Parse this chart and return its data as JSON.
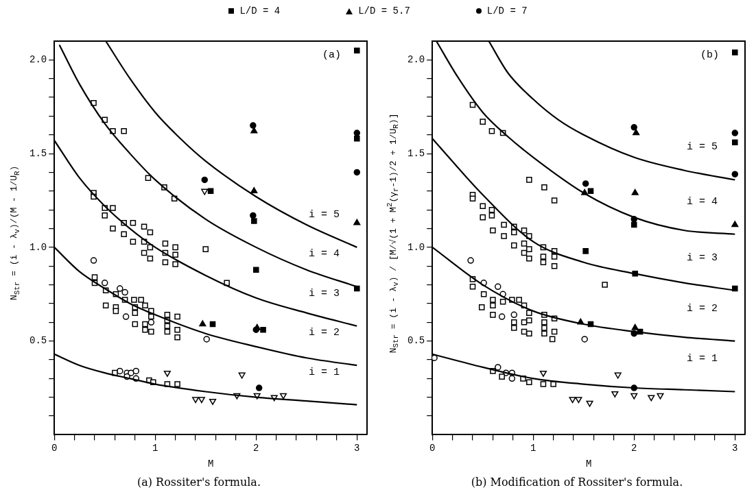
{
  "chart_data": [
    {
      "type": "scatter",
      "xlabel": "M",
      "ylabel": "N$_{Str}$ = (i - λ$_{v}$)/(M - 1/U$_{R}$)",
      "xlim": [
        0,
        3.1
      ],
      "ylim": [
        0,
        2.1
      ],
      "xticks": [
        0,
        {
          "value": 0.2,
          "label": null
        },
        {
          "value": 0.4,
          "label": null
        },
        {
          "value": 0.6,
          "label": null
        },
        {
          "value": 0.8,
          "label": null
        },
        1,
        {
          "value": 1.2,
          "label": null
        },
        {
          "value": 1.4,
          "label": null
        },
        {
          "value": 1.6,
          "label": null
        },
        {
          "value": 1.8,
          "label": null
        },
        2,
        {
          "value": 2.2,
          "label": null
        },
        {
          "value": 2.4,
          "label": null
        },
        {
          "value": 2.6,
          "label": null
        },
        {
          "value": 2.8,
          "label": null
        },
        3
      ],
      "yticks": [
        {
          "value": 0.1,
          "label": null
        },
        {
          "value": 0.2,
          "label": null
        },
        {
          "value": 0.3,
          "label": null
        },
        {
          "value": 0.4,
          "label": null
        },
        {
          "value": 0.5,
          "label": "0.5"
        },
        {
          "value": 0.6,
          "label": null
        },
        {
          "value": 0.7,
          "label": null
        },
        {
          "value": 0.8,
          "label": null
        },
        {
          "value": 0.9,
          "label": null
        },
        {
          "value": 1,
          "label": "1.0"
        },
        {
          "value": 1.1,
          "label": null
        },
        {
          "value": 1.2,
          "label": null
        },
        {
          "value": 1.3,
          "label": null
        },
        {
          "value": 1.4,
          "label": null
        },
        1.5,
        {
          "value": 1.6,
          "label": null
        },
        {
          "value": 1.7,
          "label": null
        },
        {
          "value": 1.8,
          "label": null
        },
        {
          "value": 1.9,
          "label": null
        },
        {
          "value": 2,
          "label": "2.0"
        }
      ],
      "grid": false,
      "legend": "top",
      "series": [
        {
          "type": "line",
          "color": "#000000",
          "marker": "none",
          "x": [
            0,
            0.25,
            0.5,
            0.75,
            1,
            1.5,
            2,
            2.5,
            3
          ],
          "values": [
            0.43,
            0.37,
            0.33,
            0.3,
            0.27,
            0.23,
            0.2,
            0.18,
            0.16
          ]
        },
        {
          "type": "line",
          "color": "#000000",
          "marker": "none",
          "x": [
            0,
            0.25,
            0.5,
            0.75,
            1,
            1.5,
            2,
            2.5,
            3
          ],
          "values": [
            1.0,
            0.87,
            0.78,
            0.7,
            0.64,
            0.54,
            0.47,
            0.41,
            0.37
          ]
        },
        {
          "type": "line",
          "color": "#000000",
          "marker": "none",
          "x": [
            0,
            0.25,
            0.5,
            0.75,
            1,
            1.5,
            2,
            2.5,
            3
          ],
          "values": [
            1.57,
            1.37,
            1.22,
            1.1,
            1.0,
            0.85,
            0.73,
            0.65,
            0.58
          ]
        },
        {
          "type": "line",
          "color": "#000000",
          "marker": "none",
          "x": [
            0.05,
            0.25,
            0.5,
            0.75,
            1,
            1.5,
            2,
            2.5,
            3
          ],
          "values": [
            2.08,
            1.87,
            1.66,
            1.5,
            1.36,
            1.15,
            1.0,
            0.88,
            0.79
          ]
        },
        {
          "type": "line",
          "color": "#000000",
          "marker": "none",
          "x": [
            0.51,
            0.75,
            1,
            1.25,
            1.5,
            2,
            2.5,
            3
          ],
          "values": [
            2.1,
            1.9,
            1.72,
            1.58,
            1.46,
            1.27,
            1.12,
            1.0
          ]
        },
        {
          "name": "L/D = 4",
          "type": "scatter",
          "color": "#000000",
          "marker": "square",
          "x": [
            1.55,
            1.98,
            1.57,
            2.0,
            2.07,
            3,
            3,
            3
          ],
          "values": [
            1.3,
            1.14,
            0.59,
            0.88,
            0.56,
            2.05,
            1.58,
            0.78
          ]
        },
        {
          "name": "L/D = 5.7",
          "type": "scatter",
          "color": "#000000",
          "marker": "triangle",
          "x": [
            1.98,
            1.98,
            1.47,
            2.01,
            3
          ],
          "values": [
            1.62,
            1.3,
            0.59,
            0.57,
            1.13
          ]
        },
        {
          "name": "L/D = 7",
          "type": "scatter",
          "color": "#000000",
          "marker": "circle",
          "x": [
            1.49,
            1.97,
            1.97,
            2.0,
            2.03,
            3,
            3
          ],
          "values": [
            1.36,
            1.65,
            1.17,
            0.56,
            0.25,
            1.61,
            1.4
          ]
        },
        {
          "type": "scatter",
          "color": "#000000",
          "marker": "square",
          "x": [
            0.39,
            0.5,
            0.58,
            0.69,
            0.93,
            1.09,
            1.19,
            0.39,
            0.39,
            0.5,
            0.58,
            0.5,
            0.69,
            0.78,
            0.58,
            0.69,
            0.78,
            0.89,
            0.95,
            0.89,
            0.89,
            0.95,
            0.95,
            1.1,
            1.1,
            1.1,
            1.2,
            1.2,
            1.2,
            1.5,
            0.4,
            0.4,
            0.51,
            0.51,
            0.61,
            0.61,
            0.61,
            0.7,
            0.79,
            0.86,
            0.8,
            0.8,
            0.8,
            0.9,
            0.9,
            0.9,
            0.96,
            0.96,
            0.96,
            1.12,
            1.12,
            1.12,
            1.12,
            1.22,
            1.22,
            1.22,
            0.6,
            0.94,
            0.98,
            1.12,
            1.22
          ],
          "values": [
            1.77,
            1.68,
            1.62,
            1.62,
            1.37,
            1.32,
            1.26,
            1.29,
            1.27,
            1.21,
            1.21,
            1.17,
            1.13,
            1.13,
            1.1,
            1.07,
            1.03,
            1.11,
            1.08,
            1.03,
            0.97,
            0.94,
            1.0,
            1.02,
            0.97,
            0.92,
            1.0,
            0.96,
            0.91,
            0.99,
            0.84,
            0.81,
            0.77,
            0.69,
            0.68,
            0.66,
            0.75,
            0.72,
            0.72,
            0.72,
            0.68,
            0.65,
            0.59,
            0.69,
            0.59,
            0.56,
            0.66,
            0.63,
            0.55,
            0.64,
            0.61,
            0.58,
            0.55,
            0.63,
            0.56,
            0.52,
            0.33,
            0.29,
            0.28,
            0.27,
            0.27
          ]
        },
        {
          "type": "scatter",
          "color": "#000000",
          "marker": "circle",
          "x": [
            0.39,
            0.5,
            0.65,
            0.7,
            0.71,
            0.96,
            1.51,
            0.65,
            0.72,
            0.76,
            0.81,
            0.81,
            0.72
          ],
          "values": [
            0.93,
            0.81,
            0.78,
            0.76,
            0.63,
            0.6,
            0.51,
            0.34,
            0.33,
            0.33,
            0.34,
            0.3,
            0.31
          ]
        },
        {
          "type": "scatter",
          "color": "#000000",
          "marker": "triangle",
          "x": [
            1.49,
            1.12,
            1.86,
            1.4,
            1.46,
            1.57,
            1.81,
            2.01,
            2.18,
            2.27
          ],
          "values": [
            1.3,
            0.33,
            0.32,
            0.19,
            0.19,
            0.18,
            0.21,
            0.21,
            0.2,
            0.21
          ]
        },
        {
          "type": "scatter",
          "color": "#000000",
          "marker": "square",
          "x": [
            1.71
          ],
          "values": [
            0.81
          ]
        }
      ],
      "annotations": [
        "(a)",
        "i = 1",
        "i = 2",
        "i = 3",
        "i = 4",
        "i = 5",
        "(a) Rossiter's formula."
      ]
    },
    {
      "type": "scatter",
      "xlabel": "M",
      "ylabel": "N$_{Str}$ = (i - λ$_{v}$) / [M/√(1 + M$^{2}$(γ$_{r}$-1)/2 + 1/U$_{R}$)]",
      "xlim": [
        0,
        3.1
      ],
      "ylim": [
        0,
        2.1
      ],
      "xticks": [
        0,
        {
          "value": 0.2,
          "label": null
        },
        {
          "value": 0.4,
          "label": null
        },
        {
          "value": 0.6,
          "label": null
        },
        {
          "value": 0.8,
          "label": null
        },
        1,
        {
          "value": 1.2,
          "label": null
        },
        {
          "value": 1.4,
          "label": null
        },
        {
          "value": 1.6,
          "label": null
        },
        {
          "value": 1.8,
          "label": null
        },
        2,
        {
          "value": 2.2,
          "label": null
        },
        {
          "value": 2.4,
          "label": null
        },
        {
          "value": 2.6,
          "label": null
        },
        {
          "value": 2.8,
          "label": null
        },
        3
      ],
      "yticks": [
        {
          "value": 0.1,
          "label": null
        },
        {
          "value": 0.2,
          "label": null
        },
        {
          "value": 0.3,
          "label": null
        },
        {
          "value": 0.4,
          "label": null
        },
        {
          "value": 0.5,
          "label": "0.5"
        },
        {
          "value": 0.6,
          "label": null
        },
        {
          "value": 0.7,
          "label": null
        },
        {
          "value": 0.8,
          "label": null
        },
        {
          "value": 0.9,
          "label": null
        },
        {
          "value": 1,
          "label": "1.0"
        },
        {
          "value": 1.1,
          "label": null
        },
        {
          "value": 1.2,
          "label": null
        },
        {
          "value": 1.3,
          "label": null
        },
        {
          "value": 1.4,
          "label": null
        },
        1.5,
        {
          "value": 1.6,
          "label": null
        },
        {
          "value": 1.7,
          "label": null
        },
        {
          "value": 1.8,
          "label": null
        },
        {
          "value": 1.9,
          "label": null
        },
        {
          "value": 2,
          "label": "2.0"
        }
      ],
      "grid": false,
      "series": [
        {
          "type": "line",
          "color": "#000000",
          "marker": "none",
          "x": [
            0,
            0.5,
            1,
            1.5,
            2,
            2.5,
            3
          ],
          "values": [
            0.43,
            0.36,
            0.3,
            0.27,
            0.25,
            0.24,
            0.23
          ]
        },
        {
          "type": "line",
          "color": "#000000",
          "marker": "none",
          "x": [
            0,
            0.5,
            1,
            1.5,
            2,
            2.5,
            3
          ],
          "values": [
            1.0,
            0.8,
            0.66,
            0.59,
            0.55,
            0.52,
            0.5
          ]
        },
        {
          "type": "line",
          "color": "#000000",
          "marker": "none",
          "x": [
            0,
            0.5,
            1,
            1.5,
            2,
            2.5,
            3
          ],
          "values": [
            1.58,
            1.28,
            1.03,
            0.92,
            0.86,
            0.81,
            0.77
          ]
        },
        {
          "type": "line",
          "color": "#000000",
          "marker": "none",
          "x": [
            0.04,
            0.25,
            0.5,
            0.75,
            1,
            1.5,
            2,
            2.5,
            3
          ],
          "values": [
            2.1,
            1.91,
            1.72,
            1.59,
            1.48,
            1.29,
            1.16,
            1.09,
            1.07
          ]
        },
        {
          "type": "line",
          "color": "#000000",
          "marker": "none",
          "x": [
            0.56,
            0.75,
            1,
            1.25,
            1.5,
            2,
            2.5,
            3
          ],
          "values": [
            2.1,
            1.93,
            1.79,
            1.68,
            1.6,
            1.48,
            1.41,
            1.36
          ]
        },
        {
          "type": "scatter",
          "color": "#000000",
          "marker": "square",
          "x": [
            1.57,
            2.0,
            1.52,
            2.01,
            2.06,
            1.57,
            3,
            3,
            3
          ],
          "values": [
            1.3,
            1.12,
            0.98,
            0.86,
            0.55,
            0.59,
            2.04,
            1.56,
            0.78
          ]
        },
        {
          "type": "scatter",
          "color": "#000000",
          "marker": "triangle",
          "x": [
            1.51,
            2.02,
            2.01,
            1.47,
            2.01,
            3
          ],
          "values": [
            1.29,
            1.61,
            1.29,
            0.6,
            0.57,
            1.12
          ]
        },
        {
          "type": "scatter",
          "color": "#000000",
          "marker": "circle",
          "x": [
            1.52,
            2.0,
            2.0,
            2.0,
            2.0,
            3,
            3
          ],
          "values": [
            1.34,
            1.64,
            1.15,
            0.54,
            0.25,
            1.61,
            1.39
          ]
        },
        {
          "type": "scatter",
          "color": "#000000",
          "marker": "square",
          "x": [
            0.4,
            0.5,
            0.59,
            0.7,
            0.96,
            1.11,
            1.21,
            0.4,
            0.4,
            0.5,
            0.59,
            0.5,
            0.59,
            0.71,
            0.81,
            0.91,
            0.6,
            0.71,
            0.81,
            0.81,
            0.96,
            0.91,
            0.91,
            0.96,
            0.96,
            1.1,
            1.1,
            1.1,
            1.21,
            1.21,
            1.21,
            0.4,
            0.4,
            0.51,
            0.49,
            0.6,
            0.6,
            0.6,
            0.7,
            0.79,
            0.86,
            0.81,
            0.81,
            0.91,
            0.91,
            0.91,
            0.96,
            0.96,
            0.96,
            1.11,
            1.11,
            1.11,
            1.11,
            1.21,
            1.21,
            1.19,
            0.6,
            0.69,
            0.9,
            0.96,
            1.1,
            1.2
          ],
          "values": [
            1.76,
            1.67,
            1.62,
            1.61,
            1.36,
            1.32,
            1.25,
            1.28,
            1.26,
            1.22,
            1.2,
            1.16,
            1.17,
            1.12,
            1.11,
            1.09,
            1.09,
            1.06,
            1.08,
            1.01,
            1.06,
            1.02,
            0.97,
            0.99,
            0.94,
            1.0,
            0.95,
            0.92,
            0.98,
            0.95,
            0.9,
            0.83,
            0.79,
            0.75,
            0.68,
            0.72,
            0.69,
            0.64,
            0.71,
            0.72,
            0.72,
            0.6,
            0.57,
            0.69,
            0.6,
            0.55,
            0.65,
            0.61,
            0.54,
            0.64,
            0.6,
            0.57,
            0.54,
            0.62,
            0.55,
            0.51,
            0.34,
            0.31,
            0.3,
            0.28,
            0.27,
            0.27
          ]
        },
        {
          "type": "scatter",
          "color": "#000000",
          "marker": "circle",
          "x": [
            0.38,
            0.51,
            0.65,
            0.7,
            0.69,
            0.81,
            1.51,
            0.02,
            0.65,
            0.73,
            0.79,
            0.79
          ],
          "values": [
            0.93,
            0.81,
            0.79,
            0.75,
            0.63,
            0.64,
            0.51,
            0.41,
            0.36,
            0.33,
            0.33,
            0.3
          ]
        },
        {
          "type": "scatter",
          "color": "#000000",
          "marker": "triangle",
          "x": [
            1.1,
            1.84,
            1.39,
            1.45,
            1.56,
            1.81,
            2.0,
            2.17,
            2.26
          ],
          "values": [
            0.33,
            0.32,
            0.19,
            0.19,
            0.17,
            0.22,
            0.21,
            0.2,
            0.21
          ]
        },
        {
          "type": "scatter",
          "color": "#000000",
          "marker": "square",
          "x": [
            1.71
          ],
          "values": [
            0.8
          ]
        }
      ],
      "annotations": [
        "(b)",
        "i = 1",
        "i = 2",
        "i = 3",
        "i = 4",
        "i = 5",
        "(b) Modification of Rossiter's formula."
      ]
    }
  ]
}
